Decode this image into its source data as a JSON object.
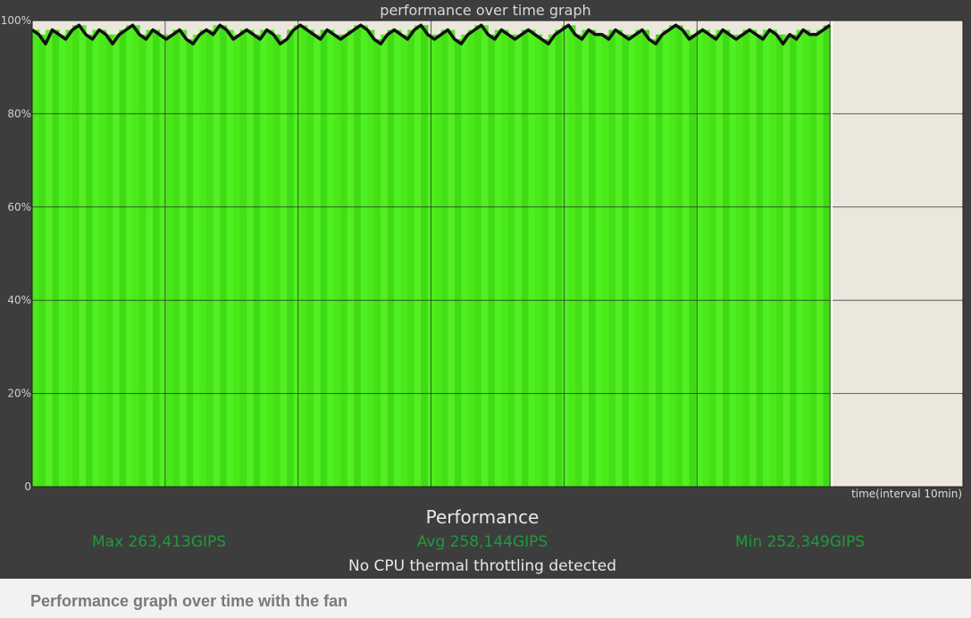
{
  "chart_data": {
    "type": "area",
    "title": "performance over time graph",
    "xlabel": "time(interval 10min)",
    "ylabel": "",
    "ylim": [
      0,
      100
    ],
    "yticks": [
      "0",
      "20%",
      "40%",
      "60%",
      "80%",
      "100%"
    ],
    "x_intervals_shown": 6,
    "x_intervals_total": 7,
    "grid": true,
    "colors": {
      "fill": "#4be81a",
      "line": "#111111",
      "remaining": "#ebe7dc",
      "frame": "#3d3d3d"
    },
    "series": [
      {
        "values": [
          98,
          97,
          95,
          98,
          97,
          96,
          98,
          99,
          97,
          96,
          98,
          97,
          95,
          97,
          98,
          99,
          97,
          96,
          98,
          97,
          96,
          97,
          98,
          96,
          95,
          97,
          98,
          97,
          99,
          98,
          96,
          97,
          98,
          97,
          96,
          98,
          97,
          95,
          96,
          98,
          99,
          98,
          97,
          96,
          98,
          97,
          96,
          97,
          98,
          99,
          98,
          96,
          95,
          97,
          98,
          97,
          96,
          98,
          99,
          97,
          96,
          97,
          98,
          96,
          95,
          97,
          98,
          99,
          97,
          96,
          98,
          97,
          96,
          97,
          98,
          97,
          96,
          95,
          97,
          98,
          99,
          97,
          96,
          98,
          97,
          97,
          96,
          98,
          97,
          96,
          97,
          98,
          96,
          95,
          97,
          98,
          99,
          98,
          96,
          97,
          98,
          97,
          96,
          98,
          97,
          96,
          97,
          98,
          97,
          96,
          98,
          97,
          95,
          97,
          96,
          98,
          97,
          97,
          98,
          99
        ]
      }
    ]
  },
  "stats": {
    "heading": "Performance",
    "max": "Max 263,413GIPS",
    "avg": "Avg 258,144GIPS",
    "min": "Min 252,349GIPS",
    "note": "No CPU thermal throttling detected"
  },
  "caption": "Performance graph over time with the fan"
}
